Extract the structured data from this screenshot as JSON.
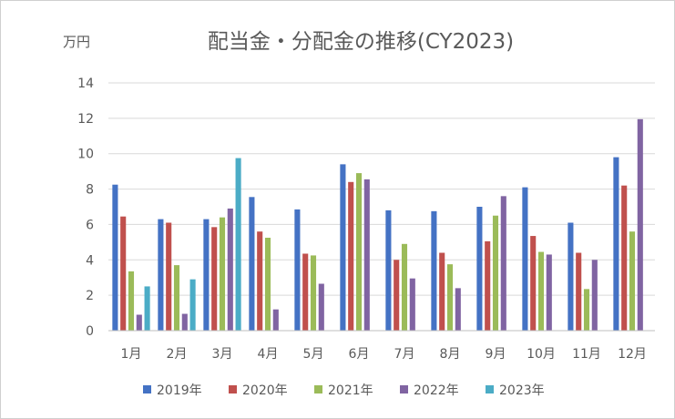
{
  "chart_data": {
    "type": "bar",
    "title": "配当金・分配金の推移(CY2023)",
    "unit_label": "万円",
    "xlabel": "",
    "ylabel": "",
    "ylim": [
      0,
      14
    ],
    "yticks": [
      0,
      2,
      4,
      6,
      8,
      10,
      12,
      14
    ],
    "grid": true,
    "legend_position": "bottom",
    "categories": [
      "1月",
      "2月",
      "3月",
      "4月",
      "5月",
      "6月",
      "7月",
      "8月",
      "9月",
      "10月",
      "11月",
      "12月"
    ],
    "series": [
      {
        "name": "2019年",
        "color": "#4472C4",
        "values": [
          8.25,
          6.3,
          6.3,
          7.55,
          6.85,
          9.4,
          6.8,
          6.75,
          7.0,
          8.1,
          6.1,
          9.8
        ]
      },
      {
        "name": "2020年",
        "color": "#C0504D",
        "values": [
          6.45,
          6.1,
          5.85,
          5.6,
          4.35,
          8.4,
          4.0,
          4.4,
          5.05,
          5.35,
          4.4,
          8.2
        ]
      },
      {
        "name": "2021年",
        "color": "#9BBB59",
        "values": [
          3.35,
          3.7,
          6.4,
          5.25,
          4.25,
          8.9,
          4.9,
          3.75,
          6.5,
          4.45,
          2.35,
          5.6
        ]
      },
      {
        "name": "2022年",
        "color": "#8064A2",
        "values": [
          0.9,
          0.95,
          6.9,
          1.2,
          2.65,
          8.55,
          2.95,
          2.4,
          7.6,
          4.3,
          4.0,
          11.95
        ]
      },
      {
        "name": "2023年",
        "color": "#4BACC6",
        "values": [
          2.5,
          2.9,
          9.75,
          null,
          null,
          null,
          null,
          null,
          null,
          null,
          null,
          null
        ]
      }
    ]
  }
}
